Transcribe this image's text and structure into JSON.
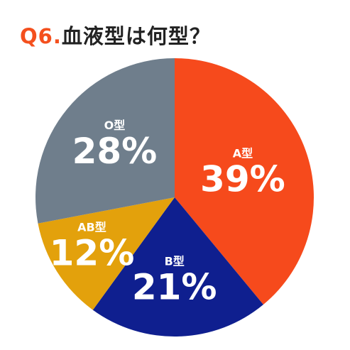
{
  "title": {
    "prefix": "Q6.",
    "text": "血液型は何型？"
  },
  "colors": {
    "A": "#f64a1c",
    "B": "#0f1f8f",
    "AB": "#e3a10c",
    "O": "#6f7e8c",
    "prefix": "#f4501e"
  },
  "chart_data": {
    "type": "pie",
    "title": "血液型は何型？",
    "start_angle_deg": 0,
    "direction": "clockwise",
    "slices": [
      {
        "label": "A型",
        "value": 39,
        "display": "39%",
        "color": "#f64a1c"
      },
      {
        "label": "B型",
        "value": 21,
        "display": "21%",
        "color": "#0f1f8f"
      },
      {
        "label": "AB型",
        "value": 12,
        "display": "12%",
        "color": "#e3a10c"
      },
      {
        "label": "O型",
        "value": 28,
        "display": "28%",
        "color": "#6f7e8c"
      }
    ]
  }
}
